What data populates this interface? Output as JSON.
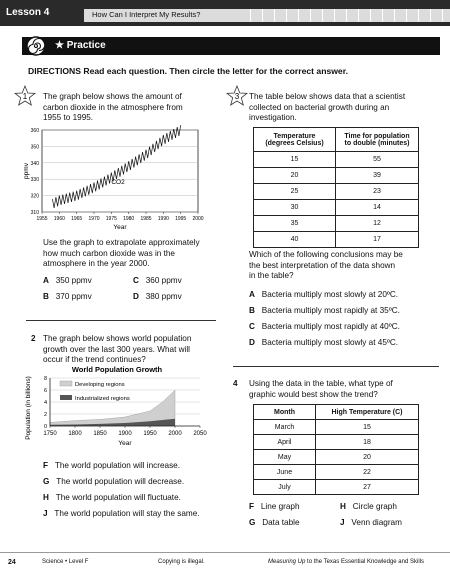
{
  "header": {
    "lesson": "Lesson 4",
    "title": "How Can I Interpret My Results?"
  },
  "practice": {
    "label": "★ Practice"
  },
  "directions": "DIRECTIONS   Read each question. Then circle the letter for the correct answer.",
  "q1": {
    "number": "1",
    "prompt": [
      "The graph below shows the amount of",
      "carbon dioxide in the atmosphere from",
      "1955 to 1995."
    ],
    "question": [
      "Use the graph to extrapolate approximately",
      "how much carbon dioxide was in the",
      "atmosphere in the year 2000."
    ],
    "options": [
      {
        "letter": "A",
        "text": "350 ppmv"
      },
      {
        "letter": "B",
        "text": "370 ppmv"
      },
      {
        "letter": "C",
        "text": "360 ppmv"
      },
      {
        "letter": "D",
        "text": "380 ppmv"
      }
    ]
  },
  "q2": {
    "number": "2",
    "prompt": [
      "The graph below shows world population",
      "growth over the last 300 years. What will",
      "occur if the trend continues?"
    ],
    "options": [
      {
        "letter": "F",
        "text": "The world population will increase."
      },
      {
        "letter": "G",
        "text": "The world population will decrease."
      },
      {
        "letter": "H",
        "text": "The world population will fluctuate."
      },
      {
        "letter": "J",
        "text": "The world population will stay the same."
      }
    ]
  },
  "q3": {
    "number": "3",
    "prompt": [
      "The table below shows data that a scientist",
      "collected on bacterial growth during an",
      "investigation."
    ],
    "table": {
      "headers": [
        [
          "Temperature",
          "(degrees Celsius)"
        ],
        [
          "Time for population",
          "to double (minutes)"
        ]
      ],
      "rows": [
        [
          "15",
          "55"
        ],
        [
          "20",
          "39"
        ],
        [
          "25",
          "23"
        ],
        [
          "30",
          "14"
        ],
        [
          "35",
          "12"
        ],
        [
          "40",
          "17"
        ]
      ]
    },
    "question": [
      "Which of the following conclusions may be",
      "the best interpretation of the data shown",
      "in the table?"
    ],
    "options": [
      {
        "letter": "A",
        "text": "Bacteria multiply most slowly at 20ºC."
      },
      {
        "letter": "B",
        "text": "Bacteria multiply most rapidly at 35ºC."
      },
      {
        "letter": "C",
        "text": "Bacteria multiply most rapidly at 40ºC."
      },
      {
        "letter": "D",
        "text": "Bacteria multiply most slowly at 45ºC."
      }
    ]
  },
  "q4": {
    "number": "4",
    "prompt": [
      "Using the data in the table, what type of",
      "graphic would best show the trend?"
    ],
    "table": {
      "headers": [
        "Month",
        "High Temperature (C)"
      ],
      "rows": [
        [
          "March",
          "15"
        ],
        [
          "April",
          "18"
        ],
        [
          "May",
          "20"
        ],
        [
          "June",
          "22"
        ],
        [
          "July",
          "27"
        ]
      ]
    },
    "options": [
      {
        "letter": "F",
        "text": "Line graph"
      },
      {
        "letter": "G",
        "text": "Data table"
      },
      {
        "letter": "H",
        "text": "Circle graph"
      },
      {
        "letter": "J",
        "text": "Venn diagram"
      }
    ]
  },
  "footer": {
    "page": "24",
    "subject": "Science • Level F",
    "copy": "Copying is illegal.",
    "series_italic": "Measuring Up",
    "series_rest": " to the Texas Essential Knowledge and Skills"
  },
  "chart_data": [
    {
      "type": "line",
      "title": "",
      "xlabel": "Year",
      "ylabel": "ppmv",
      "xlim": [
        1955,
        2000
      ],
      "ylim": [
        310,
        360
      ],
      "xticks": [
        "1955",
        "1960",
        "1965",
        "1970",
        "1975",
        "1980",
        "1985",
        "1990",
        "1995",
        "2000"
      ],
      "yticks": [
        "310",
        "320",
        "330",
        "340",
        "350",
        "360"
      ],
      "series": [
        {
          "name": "CO2",
          "x": [
            1958,
            1960,
            1965,
            1970,
            1975,
            1980,
            1985,
            1990,
            1995
          ],
          "y": [
            315,
            317,
            320,
            325,
            331,
            338,
            345,
            354,
            360
          ]
        }
      ],
      "seasonal_amplitude": 3
    },
    {
      "type": "area",
      "title": "World Population Growth",
      "xlabel": "Year",
      "ylabel": "Population (in billions)",
      "xlim": [
        1750,
        2050
      ],
      "ylim": [
        0,
        8
      ],
      "xticks": [
        "1750",
        "1800",
        "1850",
        "1900",
        "1950",
        "2000",
        "2050"
      ],
      "yticks": [
        "0",
        "2",
        "4",
        "6",
        "8"
      ],
      "legend": [
        "Developing regions",
        "Industrialized regions"
      ],
      "series": [
        {
          "name": "Industrialized regions",
          "x": [
            1750,
            1800,
            1850,
            1900,
            1950,
            2000
          ],
          "y": [
            0.2,
            0.25,
            0.35,
            0.5,
            0.8,
            1.2
          ]
        },
        {
          "name": "Developing regions",
          "x": [
            1750,
            1800,
            1850,
            1900,
            1950,
            1975,
            2000
          ],
          "y": [
            0.6,
            0.9,
            1.1,
            1.5,
            2.5,
            4.0,
            6.0
          ]
        }
      ]
    }
  ]
}
